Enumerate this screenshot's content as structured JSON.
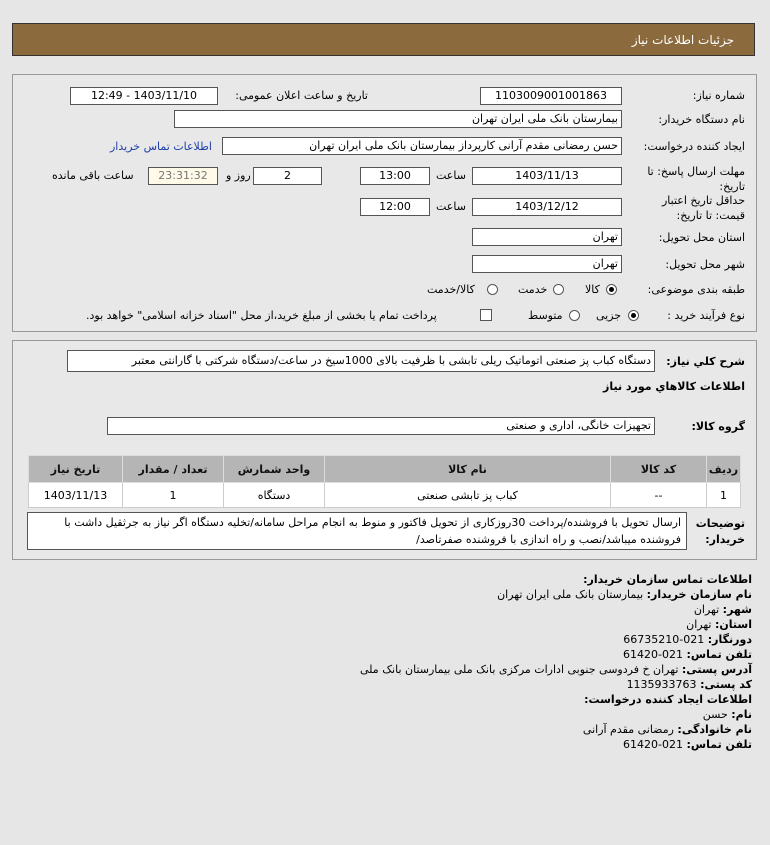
{
  "header": {
    "title": "جزئیات اطلاعات نیاز"
  },
  "form": {
    "need_number_label": "شماره نیاز:",
    "need_number": "1103009001001863",
    "announce_label": "تاریخ و ساعت اعلان عمومی:",
    "announce_value": "1403/11/10 - 12:49",
    "buyer_org_label": "نام دستگاه خریدار:",
    "buyer_org": "بیمارستان بانک ملی ایران تهران",
    "creator_label": "ایجاد کننده درخواست:",
    "creator": "حسن رمضانی مقدم آرانی کارپرداز بیمارستان بانک ملی ایران تهران",
    "contact_link": "اطلاعات تماس خریدار",
    "deadline_label": "مهلت ارسال پاسخ: تا تاریخ:",
    "deadline_date": "1403/11/13",
    "time_label": "ساعت",
    "deadline_time": "13:00",
    "days": "2",
    "days_label": "روز و",
    "remaining": "23:31:32",
    "remaining_label": "ساعت باقی مانده",
    "validity_label": "حداقل تاریخ اعتبار قیمت: تا تاریخ:",
    "validity_date": "1403/12/12",
    "validity_time": "12:00",
    "province_label": "استان محل تحویل:",
    "province": "تهران",
    "city_label": "شهر محل تحویل:",
    "city": "تهران",
    "category_label": "طبقه بندی موضوعی:",
    "category_options": [
      "کالا",
      "خدمت",
      "کالا/خدمت"
    ],
    "category_selected": "کالا",
    "process_label": "نوع فرآیند خرید :",
    "process_options": [
      "جزیی",
      "متوسط"
    ],
    "process_selected": "جزیی",
    "payment_note": "پرداخت تمام یا بخشی از مبلغ خرید،از محل \"اسناد خزانه اسلامی\" خواهد بود."
  },
  "details": {
    "desc_label": "شرح کلي نياز:",
    "desc": "دستگاه کباب پز صنعتی اتوماتیک ریلی تابشی با ظرفیت بالای 1000سیخ در ساعت/دستگاه شرکتی با گارانتی معتبر",
    "goods_title": "اطلاعات کالاهاي مورد نياز",
    "group_label": "گروه کالا:",
    "group": "تجهیزات خانگی، اداری و صنعتی",
    "table": {
      "headers": [
        "ردیف",
        "کد کالا",
        "نام کالا",
        "واحد شمارش",
        "تعداد / مقدار",
        "تاریخ نیاز"
      ],
      "rows": [
        [
          "1",
          "--",
          "کباب پز تابشی صنعتی",
          "دستگاه",
          "1",
          "1403/11/13"
        ]
      ]
    },
    "notes_label": "توضیحات خریدار:",
    "notes": "ارسال تحویل با فروشنده/پرداخت 30روزکاری از تحویل فاکتور و منوط به انجام مراحل سامانه/تخلیه دستگاه اگر نیاز به جرثقیل داشت با فروشنده میباشد/نصب و راه اندازی با فروشنده صفرتاصد/"
  },
  "contact": {
    "title": "اطلاعات تماس سازمان خریدار:",
    "org_label": "نام سازمان خریدار:",
    "org": "بیمارستان بانک ملی ایران تهران",
    "city_label": "شهر:",
    "city": "تهران",
    "province_label": "استان:",
    "province": "تهران",
    "fax_label": "دورنگار:",
    "fax": "021-66735210",
    "phone_label": "تلفن تماس:",
    "phone": "021-61420",
    "address_label": "آدرس پستی:",
    "address": "تهران خ فردوسی جنوبی ادارات مرکزی بانک ملی بیمارستان بانک ملی",
    "postal_label": "کد پستی:",
    "postal": "1135933763",
    "creator_title": "اطلاعات ایجاد کننده درخواست:",
    "name_label": "نام:",
    "name": "حسن",
    "family_label": "نام خانوادگی:",
    "family": "رمضانی مقدم آرانی",
    "creator_phone_label": "تلفن تماس:",
    "creator_phone": "021-61420"
  }
}
